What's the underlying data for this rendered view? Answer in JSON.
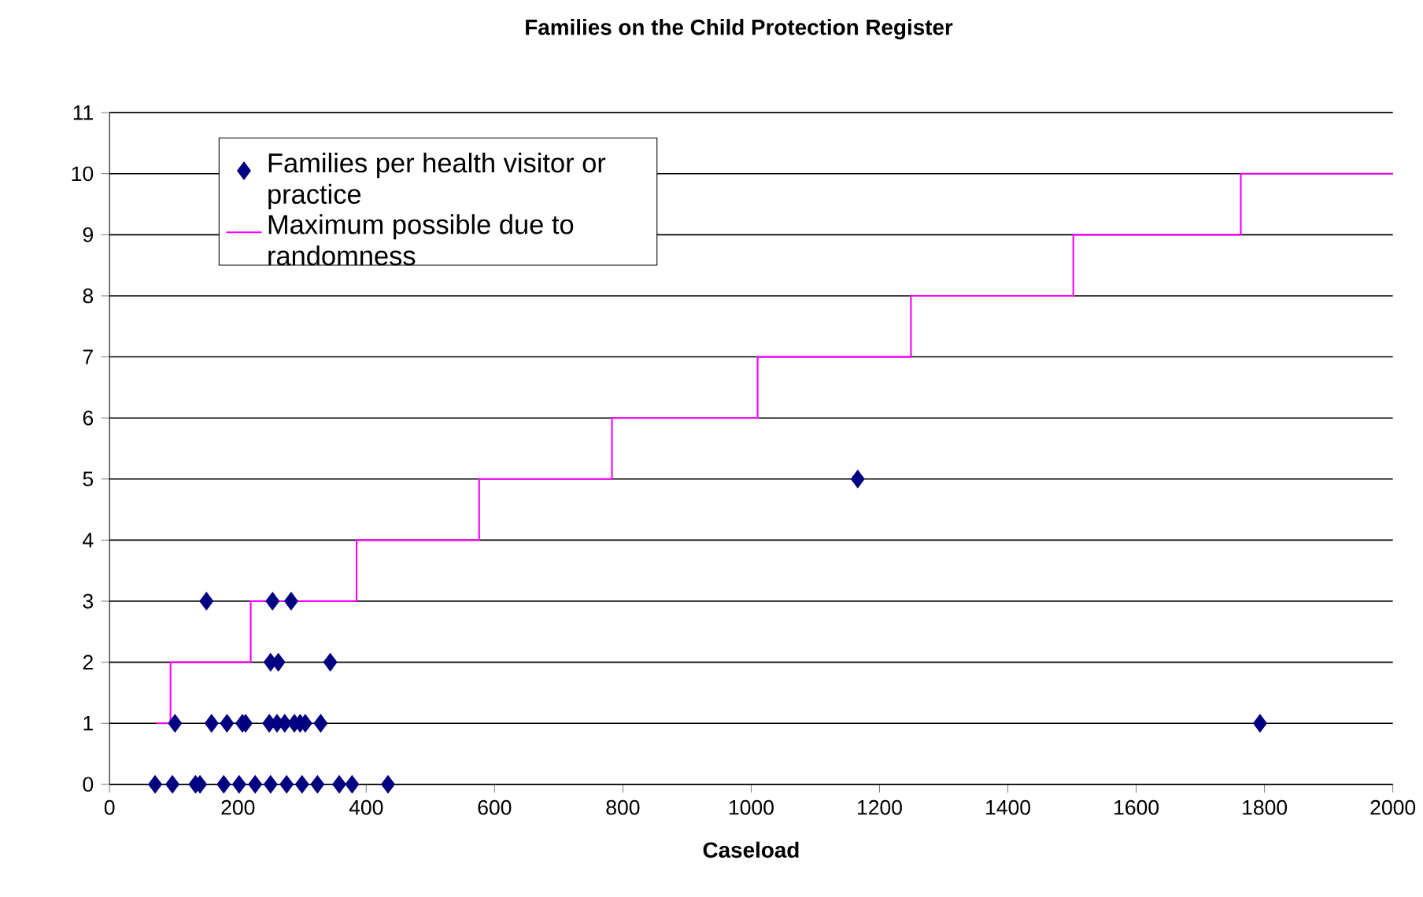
{
  "chart_data": {
    "type": "scatter",
    "title": "Families on the Child Protection Register",
    "xlabel": "Caseload",
    "xlim": [
      0,
      2000
    ],
    "xticks": [
      0,
      200,
      400,
      600,
      800,
      1000,
      1200,
      1400,
      1600,
      1800,
      2000
    ],
    "ylim": [
      0,
      11
    ],
    "yticks": [
      0,
      1,
      2,
      3,
      4,
      5,
      6,
      7,
      8,
      9,
      10,
      11
    ],
    "grid": "y",
    "legend": "top left",
    "series": [
      {
        "name": "Families per health visitor or practice",
        "type": "scatter",
        "marker": "diamond",
        "color": "#000080",
        "x": [
          71,
          98,
          134,
          141,
          178,
          202,
          227,
          251,
          276,
          300,
          324,
          358,
          378,
          434,
          102,
          159,
          183,
          207,
          212,
          249,
          261,
          273,
          288,
          297,
          305,
          329,
          251,
          263,
          344,
          151,
          254,
          283,
          1166,
          1793
        ],
        "values": [
          0,
          0,
          0,
          0,
          0,
          0,
          0,
          0,
          0,
          0,
          0,
          0,
          0,
          0,
          1,
          1,
          1,
          1,
          1,
          1,
          1,
          1,
          1,
          1,
          1,
          1,
          2,
          2,
          2,
          3,
          3,
          3,
          5,
          1
        ]
      },
      {
        "name": "Maximum possible due to randomness",
        "type": "step",
        "marker": "none",
        "color": "#ff00ff",
        "x": [
          73,
          95,
          220,
          385,
          576,
          783,
          1010,
          1249,
          1502,
          1763,
          2000
        ],
        "values": [
          1,
          2,
          3,
          4,
          5,
          6,
          7,
          8,
          9,
          10,
          10
        ]
      }
    ]
  }
}
